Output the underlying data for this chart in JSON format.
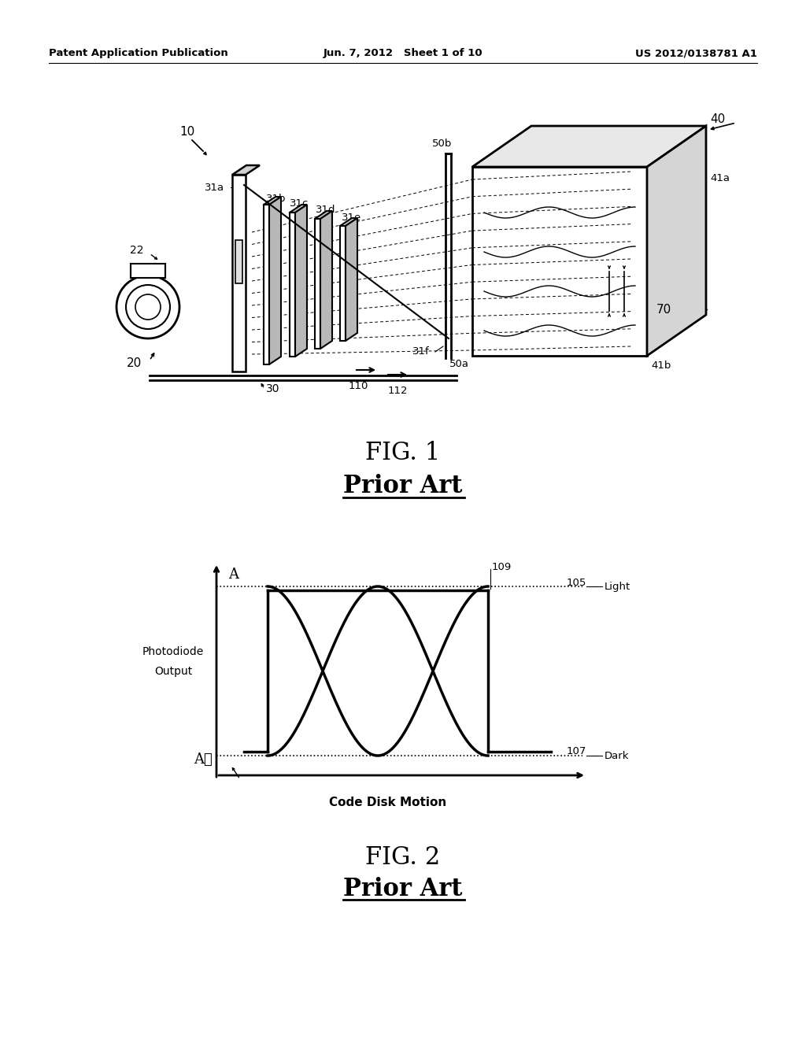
{
  "bg_color": "#ffffff",
  "header_left": "Patent Application Publication",
  "header_center": "Jun. 7, 2012   Sheet 1 of 10",
  "header_right": "US 2012/0138781 A1",
  "fig1_caption": "FIG. 1",
  "fig1_subcaption": "Prior Art",
  "fig2_caption": "FIG. 2",
  "fig2_subcaption": "Prior Art",
  "fig2_xlabel": "Code Disk Motion",
  "fig2_ylabel_line1": "Photodiode",
  "fig2_ylabel_line2": "Output",
  "label_A": "A",
  "label_Al": "Aℓ",
  "label_109": "109",
  "label_105": "105",
  "label_107": "107",
  "label_Light": "Light",
  "label_Dark": "Dark",
  "label_10": "10",
  "label_20": "20",
  "label_22": "22",
  "label_30": "30",
  "label_31a": "31a",
  "label_31b": "31b",
  "label_31c": "31c",
  "label_31d": "31d",
  "label_31e": "31e",
  "label_31f": "31f",
  "label_40": "40",
  "label_41a": "41a",
  "label_41b": "41b",
  "label_50a": "50a",
  "label_50b": "50b",
  "label_70": "70",
  "label_110": "110",
  "label_112": "112"
}
